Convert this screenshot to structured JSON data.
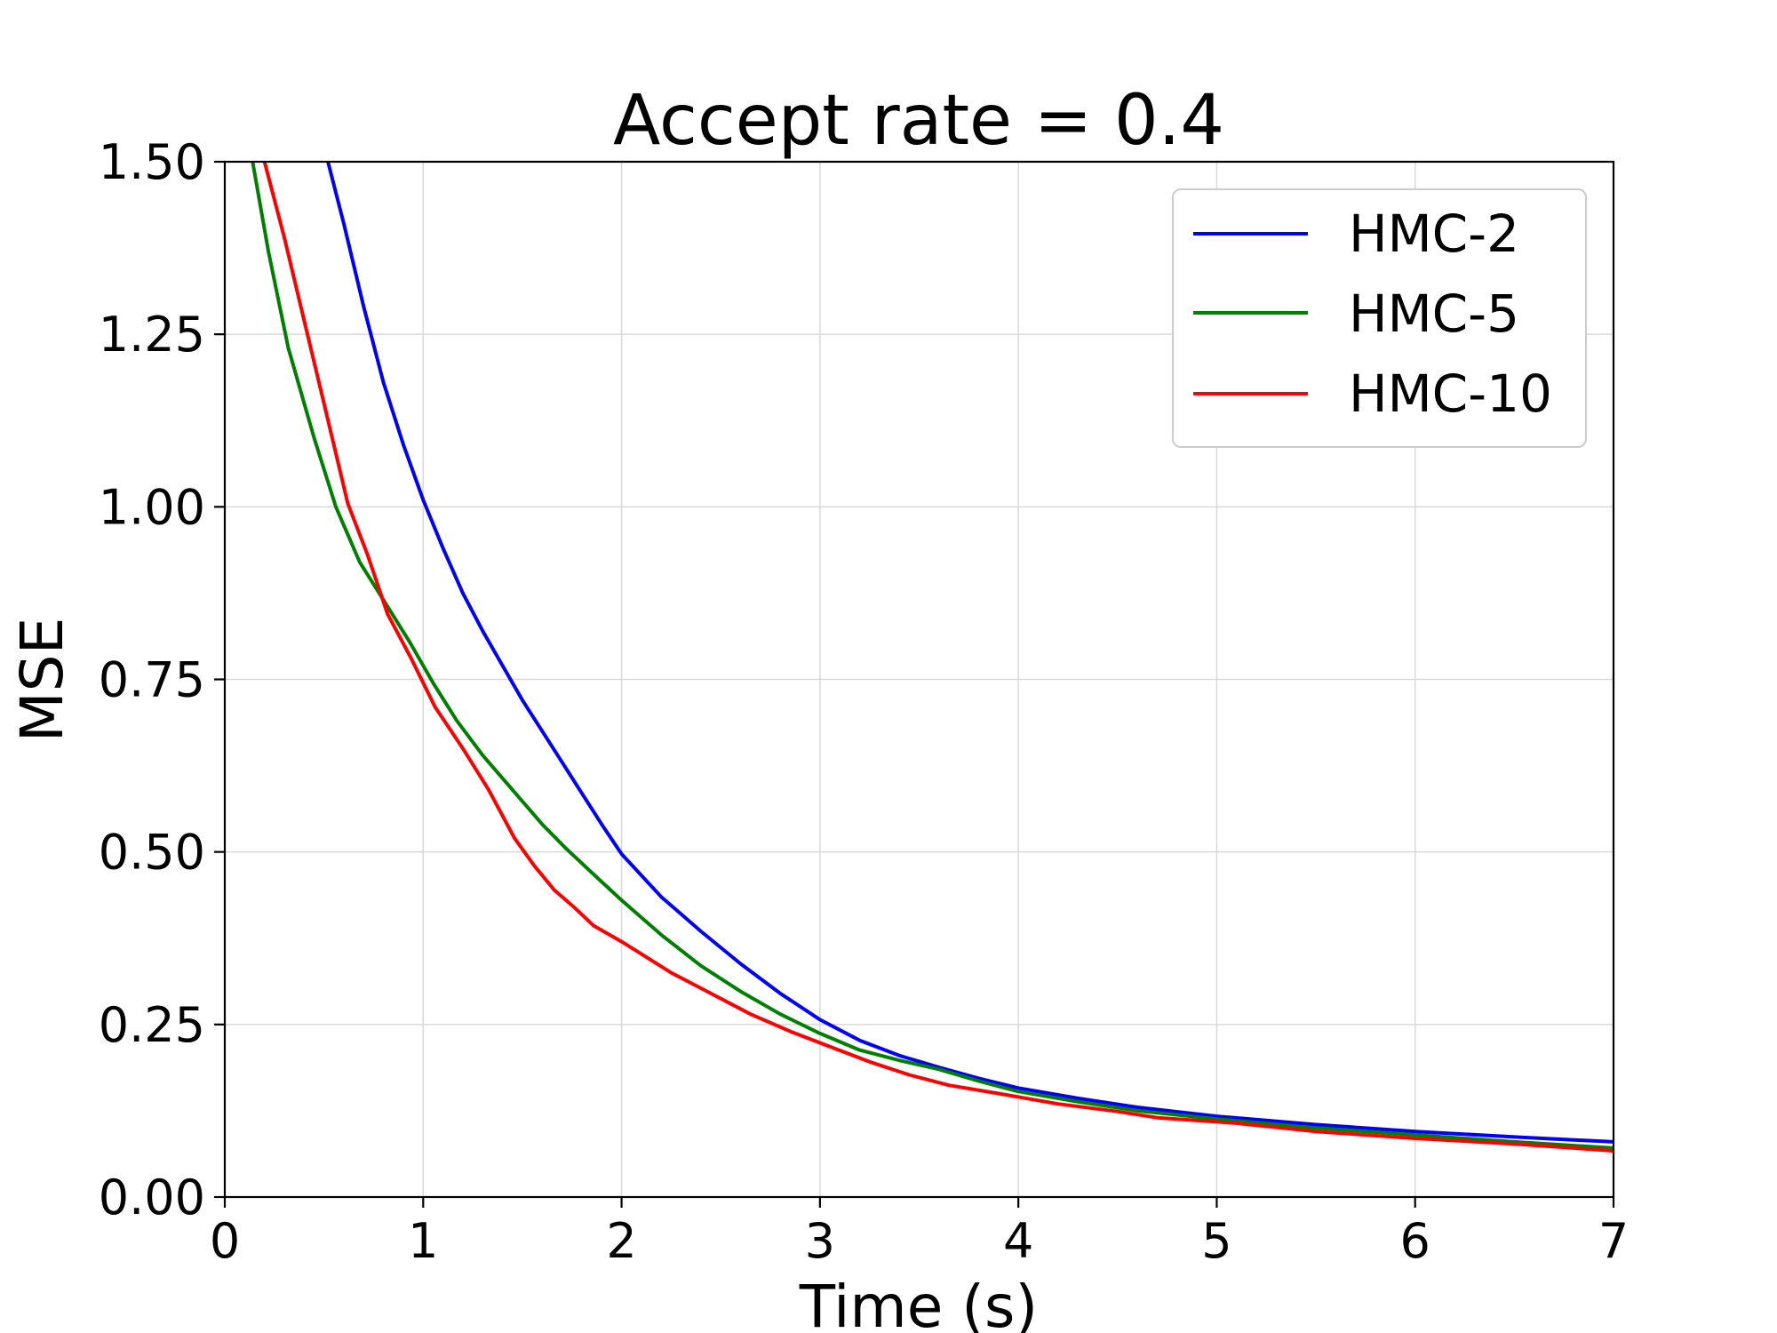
{
  "chart_data": {
    "type": "line",
    "title": "Accept rate = 0.4",
    "xlabel": "Time (s)",
    "ylabel": "MSE",
    "xlim": [
      0,
      7
    ],
    "ylim": [
      0,
      1.5
    ],
    "xticks": [
      0,
      1,
      2,
      3,
      4,
      5,
      6,
      7
    ],
    "xtick_labels": [
      "0",
      "1",
      "2",
      "3",
      "4",
      "5",
      "6",
      "7"
    ],
    "yticks": [
      0,
      0.25,
      0.5,
      0.75,
      1.0,
      1.25,
      1.5
    ],
    "ytick_labels": [
      "0.00",
      "0.25",
      "0.50",
      "0.75",
      "1.00",
      "1.25",
      "1.50"
    ],
    "grid": true,
    "legend_position": "top-right",
    "series": [
      {
        "name": "HMC-2",
        "color": "#0000ff",
        "points": [
          [
            0.52,
            1.5
          ],
          [
            0.6,
            1.41
          ],
          [
            0.7,
            1.29
          ],
          [
            0.8,
            1.18
          ],
          [
            0.9,
            1.09
          ],
          [
            1.0,
            1.01
          ],
          [
            1.1,
            0.94
          ],
          [
            1.2,
            0.875
          ],
          [
            1.3,
            0.82
          ],
          [
            1.4,
            0.77
          ],
          [
            1.5,
            0.72
          ],
          [
            1.6,
            0.675
          ],
          [
            1.7,
            0.63
          ],
          [
            1.8,
            0.585
          ],
          [
            1.9,
            0.54
          ],
          [
            2.0,
            0.497
          ],
          [
            2.2,
            0.435
          ],
          [
            2.4,
            0.385
          ],
          [
            2.6,
            0.338
          ],
          [
            2.8,
            0.295
          ],
          [
            3.0,
            0.257
          ],
          [
            3.2,
            0.227
          ],
          [
            3.4,
            0.205
          ],
          [
            3.6,
            0.188
          ],
          [
            3.8,
            0.172
          ],
          [
            4.0,
            0.158
          ],
          [
            4.3,
            0.143
          ],
          [
            4.6,
            0.13
          ],
          [
            5.0,
            0.117
          ],
          [
            5.5,
            0.105
          ],
          [
            6.0,
            0.095
          ],
          [
            6.5,
            0.087
          ],
          [
            7.0,
            0.08
          ]
        ]
      },
      {
        "name": "HMC-5",
        "color": "#008000",
        "points": [
          [
            0.14,
            1.5
          ],
          [
            0.22,
            1.37
          ],
          [
            0.32,
            1.23
          ],
          [
            0.45,
            1.1
          ],
          [
            0.56,
            1.0
          ],
          [
            0.68,
            0.92
          ],
          [
            0.8,
            0.865
          ],
          [
            0.93,
            0.805
          ],
          [
            1.05,
            0.745
          ],
          [
            1.17,
            0.69
          ],
          [
            1.3,
            0.64
          ],
          [
            1.45,
            0.59
          ],
          [
            1.6,
            0.54
          ],
          [
            1.72,
            0.505
          ],
          [
            1.85,
            0.47
          ],
          [
            2.0,
            0.43
          ],
          [
            2.2,
            0.38
          ],
          [
            2.4,
            0.335
          ],
          [
            2.6,
            0.298
          ],
          [
            2.8,
            0.265
          ],
          [
            3.0,
            0.237
          ],
          [
            3.2,
            0.213
          ],
          [
            3.4,
            0.198
          ],
          [
            3.6,
            0.185
          ],
          [
            3.8,
            0.168
          ],
          [
            4.0,
            0.153
          ],
          [
            4.3,
            0.138
          ],
          [
            4.6,
            0.125
          ],
          [
            5.0,
            0.113
          ],
          [
            5.5,
            0.1
          ],
          [
            6.0,
            0.09
          ],
          [
            6.5,
            0.08
          ],
          [
            7.0,
            0.071
          ]
        ]
      },
      {
        "name": "HMC-10",
        "color": "#ff0000",
        "points": [
          [
            0.2,
            1.5
          ],
          [
            0.3,
            1.39
          ],
          [
            0.4,
            1.27
          ],
          [
            0.5,
            1.15
          ],
          [
            0.62,
            1.005
          ],
          [
            0.72,
            0.93
          ],
          [
            0.82,
            0.845
          ],
          [
            0.94,
            0.78
          ],
          [
            1.06,
            0.71
          ],
          [
            1.2,
            0.65
          ],
          [
            1.33,
            0.59
          ],
          [
            1.46,
            0.52
          ],
          [
            1.56,
            0.48
          ],
          [
            1.66,
            0.445
          ],
          [
            1.76,
            0.42
          ],
          [
            1.86,
            0.393
          ],
          [
            2.0,
            0.37
          ],
          [
            2.25,
            0.325
          ],
          [
            2.45,
            0.295
          ],
          [
            2.65,
            0.265
          ],
          [
            2.85,
            0.24
          ],
          [
            3.05,
            0.218
          ],
          [
            3.25,
            0.196
          ],
          [
            3.45,
            0.177
          ],
          [
            3.65,
            0.162
          ],
          [
            3.9,
            0.15
          ],
          [
            4.2,
            0.135
          ],
          [
            4.5,
            0.124
          ],
          [
            4.7,
            0.115
          ],
          [
            5.1,
            0.107
          ],
          [
            5.5,
            0.095
          ],
          [
            6.0,
            0.085
          ],
          [
            6.5,
            0.077
          ],
          [
            7.0,
            0.067
          ]
        ]
      }
    ]
  }
}
